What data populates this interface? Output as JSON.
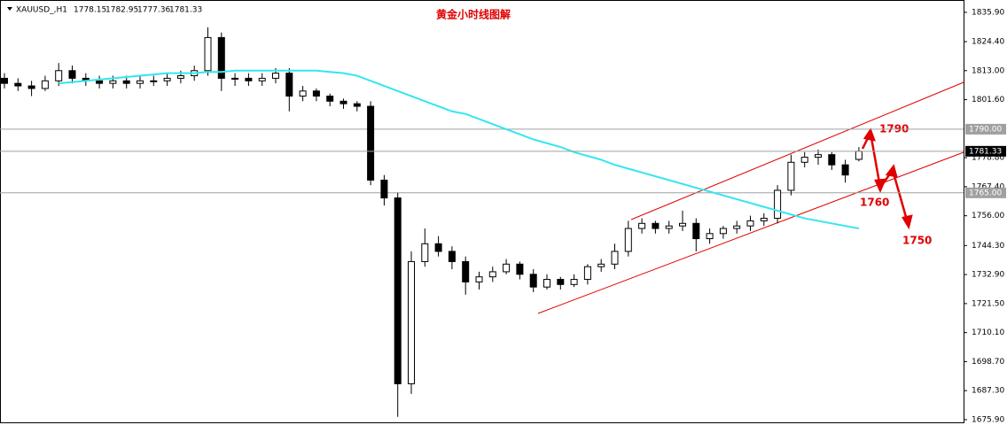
{
  "chart_data": {
    "type": "candlestick",
    "title": "黄金小时线图解",
    "symbol": "XAUUSD_,H1",
    "open": [
      1810,
      1808,
      1807,
      1806,
      1809,
      1813,
      1810,
      1809,
      1808,
      1809,
      1808,
      1809,
      1809,
      1810,
      1811,
      1813,
      1826,
      1810,
      1810,
      1809,
      1810,
      1812,
      1803,
      1805,
      1803,
      1801,
      1800,
      1799,
      1770,
      1763,
      1690,
      1738,
      1745,
      1742,
      1738,
      1730,
      1732,
      1734,
      1737,
      1733,
      1728,
      1731,
      1729,
      1731,
      1736,
      1737,
      1742,
      1751,
      1753,
      1751,
      1752,
      1753,
      1747,
      1749,
      1751,
      1752,
      1754,
      1755,
      1766,
      1777,
      1779,
      1780,
      1776,
      1778.15
    ],
    "high": [
      1812,
      1810,
      1809,
      1811,
      1816,
      1815,
      1812,
      1811,
      1811,
      1811,
      1811,
      1811,
      1812,
      1813,
      1815,
      1830,
      1828,
      1812,
      1812,
      1812,
      1814,
      1814,
      1807,
      1806,
      1804,
      1802,
      1801,
      1801,
      1772,
      1765,
      1742,
      1751,
      1748,
      1744,
      1740,
      1734,
      1736,
      1739,
      1738,
      1735,
      1733,
      1732,
      1733,
      1737,
      1739,
      1745,
      1754,
      1755,
      1754,
      1754,
      1758,
      1755,
      1751,
      1752,
      1754,
      1756,
      1757,
      1768,
      1780,
      1781,
      1782,
      1781,
      1778,
      1782.95
    ],
    "low": [
      1806,
      1805,
      1803,
      1805,
      1807,
      1808,
      1807,
      1806,
      1806,
      1806,
      1806,
      1807,
      1807,
      1808,
      1809,
      1811,
      1805,
      1807,
      1807,
      1807,
      1808,
      1797,
      1801,
      1801,
      1799,
      1798,
      1797,
      1768,
      1760,
      1677,
      1686,
      1736,
      1740,
      1735,
      1725,
      1727,
      1730,
      1733,
      1731,
      1726,
      1727,
      1727,
      1728,
      1729,
      1734,
      1735,
      1740,
      1749,
      1749,
      1749,
      1750,
      1742,
      1745,
      1747,
      1749,
      1750,
      1752,
      1753,
      1764,
      1775,
      1776,
      1774,
      1769,
      1777.36
    ],
    "close": [
      1808,
      1807,
      1806,
      1809,
      1813,
      1810,
      1809,
      1808,
      1809,
      1808,
      1809,
      1809,
      1810,
      1811,
      1813,
      1826,
      1810,
      1810,
      1809,
      1810,
      1812,
      1803,
      1805,
      1803,
      1801,
      1800,
      1799,
      1770,
      1763,
      1690,
      1738,
      1745,
      1742,
      1738,
      1730,
      1732,
      1734,
      1737,
      1733,
      1728,
      1731,
      1729,
      1731,
      1736,
      1737,
      1742,
      1751,
      1753,
      1751,
      1752,
      1753,
      1747,
      1749,
      1751,
      1752,
      1754,
      1755,
      1766,
      1777,
      1779,
      1780,
      1776,
      1772,
      1781.33
    ],
    "ma": {
      "color": "#33e6f0",
      "values": [
        null,
        null,
        null,
        null,
        1808,
        1808.5,
        1809,
        1809.5,
        1810,
        1810.5,
        1811,
        1811.5,
        1812,
        1812,
        1812,
        1812.5,
        1812.5,
        1813,
        1813,
        1813,
        1813,
        1813,
        1813,
        1813,
        1812.5,
        1812,
        1811,
        1809,
        1807,
        1805,
        1803,
        1801,
        1799,
        1797,
        1796,
        1794,
        1792,
        1790,
        1788,
        1786,
        1784.5,
        1783,
        1781,
        1779.5,
        1778,
        1776,
        1774.5,
        1773,
        1771.5,
        1770,
        1768.5,
        1767,
        1765.5,
        1764,
        1762.5,
        1761,
        1759.5,
        1758,
        1756.5,
        1755,
        1754,
        1753,
        1752,
        1751
      ]
    },
    "ylim": [
      1674.5,
      1840.75
    ],
    "yticks": [
      {
        "value": 1835.9,
        "label": "1835.90"
      },
      {
        "value": 1824.4,
        "label": "1824.40"
      },
      {
        "value": 1813,
        "label": "1813.00"
      },
      {
        "value": 1801.6,
        "label": "1801.60"
      },
      {
        "value": 1778.8,
        "label": "1778.80"
      },
      {
        "value": 1767.4,
        "label": "1767.40"
      },
      {
        "value": 1756,
        "label": "1756.00"
      },
      {
        "value": 1744.3,
        "label": "1744.30"
      },
      {
        "value": 1732.9,
        "label": "1732.90"
      },
      {
        "value": 1721.5,
        "label": "1721.50"
      },
      {
        "value": 1710.1,
        "label": "1710.10"
      },
      {
        "value": 1698.7,
        "label": "1698.70"
      },
      {
        "value": 1687.3,
        "label": "1687.30"
      },
      {
        "value": 1675.9,
        "label": "1675.90"
      }
    ],
    "hlines": [
      {
        "value": 1790,
        "label": "1790.00"
      },
      {
        "value": 1765,
        "label": "1765.00"
      }
    ],
    "annotations": [
      "1790",
      "1760",
      "1750"
    ]
  }
}
